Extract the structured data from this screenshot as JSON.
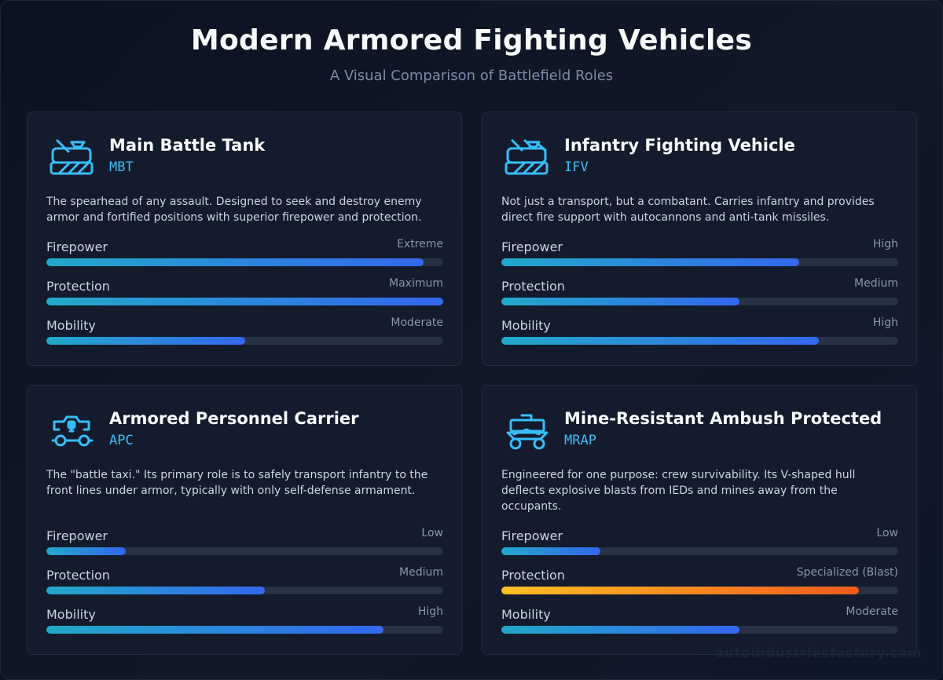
{
  "header": {
    "title": "Modern Armored Fighting Vehicles",
    "subtitle": "A Visual Comparison of Battlefield Roles"
  },
  "colors": {
    "accent": "#38bdf8",
    "bar_start": "#22a9c9",
    "bar_end": "#3467ee",
    "warn_start": "#fbbf24",
    "warn_end": "#f15a1e"
  },
  "cards": [
    {
      "icon": "tank-icon",
      "name": "Main Battle Tank",
      "code": "MBT",
      "description": "The spearhead of any assault. Designed to seek and destroy enemy armor and fortified positions with superior firepower and protection.",
      "stats": [
        {
          "label": "Firepower",
          "value": "Extreme",
          "level": 0.95
        },
        {
          "label": "Protection",
          "value": "Maximum",
          "level": 1.0
        },
        {
          "label": "Mobility",
          "value": "Moderate",
          "level": 0.5
        }
      ]
    },
    {
      "icon": "ifv-icon",
      "name": "Infantry Fighting Vehicle",
      "code": "IFV",
      "description": "Not just a transport, but a combatant. Carries infantry and provides direct fire support with autocannons and anti-tank missiles.",
      "stats": [
        {
          "label": "Firepower",
          "value": "High",
          "level": 0.75
        },
        {
          "label": "Protection",
          "value": "Medium",
          "level": 0.6
        },
        {
          "label": "Mobility",
          "value": "High",
          "level": 0.8
        }
      ]
    },
    {
      "icon": "apc-icon",
      "name": "Armored Personnel Carrier",
      "code": "APC",
      "description": "The \"battle taxi.\" Its primary role is to safely transport infantry to the front lines under armor, typically with only self-defense armament.",
      "stats": [
        {
          "label": "Firepower",
          "value": "Low",
          "level": 0.2
        },
        {
          "label": "Protection",
          "value": "Medium",
          "level": 0.55
        },
        {
          "label": "Mobility",
          "value": "High",
          "level": 0.85
        }
      ]
    },
    {
      "icon": "mrap-icon",
      "name": "Mine-Resistant Ambush Protected",
      "code": "MRAP",
      "description": "Engineered for one purpose: crew survivability. Its V-shaped hull deflects explosive blasts from IEDs and mines away from the occupants.",
      "stats": [
        {
          "label": "Firepower",
          "value": "Low",
          "level": 0.25
        },
        {
          "label": "Protection",
          "value": "Specialized (Blast)",
          "level": 0.9,
          "highlight": true
        },
        {
          "label": "Mobility",
          "value": "Moderate",
          "level": 0.6
        }
      ]
    }
  ],
  "watermark": "autoindustriesfactory.com"
}
